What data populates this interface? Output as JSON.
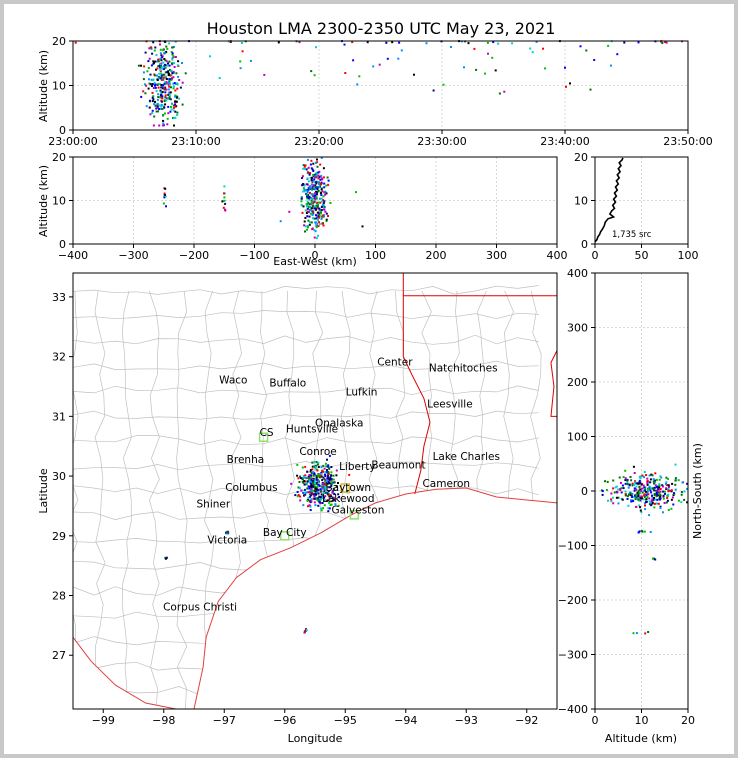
{
  "title": "Houston LMA 2300-2350 UTC May 23, 2021",
  "chart_data": [
    {
      "panel": "time-altitude",
      "type": "scatter",
      "ylabel": "Altitude (km)",
      "xlabel": "",
      "x_ticks": [
        "23:00:00",
        "23:10:00",
        "23:20:00",
        "23:30:00",
        "23:40:00",
        "23:50:00"
      ],
      "xlim_minutes": [
        0,
        50
      ],
      "y_ticks": [
        0,
        10,
        20
      ],
      "ylim": [
        0,
        20
      ],
      "grid": true
    },
    {
      "panel": "east-west-altitude",
      "type": "scatter",
      "xlabel": "East-West (km)",
      "ylabel": "Altitude (km)",
      "x_ticks": [
        -400,
        -300,
        -200,
        -100,
        0,
        100,
        200,
        300,
        400
      ],
      "xlim": [
        -400,
        400
      ],
      "y_ticks": [
        0,
        10,
        20
      ],
      "ylim": [
        0,
        20
      ],
      "grid": true
    },
    {
      "panel": "altitude-histogram",
      "type": "line",
      "x_ticks": [
        0,
        50,
        100
      ],
      "xlim": [
        0,
        100
      ],
      "y_ticks": [
        0,
        10,
        20
      ],
      "ylim": [
        0,
        20
      ],
      "annotation": "1,735 src",
      "profile": [
        [
          0,
          0.5
        ],
        [
          2,
          1
        ],
        [
          3,
          1.6
        ],
        [
          5,
          2.2
        ],
        [
          6,
          2.8
        ],
        [
          8,
          3.4
        ],
        [
          10,
          4.2
        ],
        [
          11,
          5
        ],
        [
          14,
          5.8
        ],
        [
          20,
          6.2
        ],
        [
          16,
          6.9
        ],
        [
          18,
          7.6
        ],
        [
          21,
          8.2
        ],
        [
          19,
          8.9
        ],
        [
          22,
          9.6
        ],
        [
          20,
          10.3
        ],
        [
          23,
          11
        ],
        [
          21,
          11.7
        ],
        [
          24,
          12.4
        ],
        [
          22,
          13.1
        ],
        [
          25,
          13.8
        ],
        [
          23,
          14.5
        ],
        [
          26,
          15.2
        ],
        [
          24,
          15.9
        ],
        [
          27,
          16.6
        ],
        [
          25,
          17.3
        ],
        [
          28,
          18
        ],
        [
          26,
          18.7
        ],
        [
          29,
          19.3
        ],
        [
          30,
          19.8
        ]
      ]
    },
    {
      "panel": "plan-view-map",
      "type": "scatter",
      "xlabel": "Longitude",
      "ylabel": "Latitude",
      "x_ticks": [
        -99,
        -98,
        -97,
        -96,
        -95,
        -94,
        -93,
        -92
      ],
      "xlim": [
        -99.5,
        -91.5
      ],
      "y_ticks": [
        27,
        28,
        29,
        30,
        31,
        32,
        33
      ],
      "ylim": [
        26.1,
        33.4
      ],
      "cities": [
        {
          "name": "Waco",
          "lon": -96.85,
          "lat": 31.55
        },
        {
          "name": "Buffalo",
          "lon": -95.95,
          "lat": 31.5
        },
        {
          "name": "Lufkin",
          "lon": -94.73,
          "lat": 31.35
        },
        {
          "name": "Center",
          "lon": -94.18,
          "lat": 31.85
        },
        {
          "name": "Natchitoches",
          "lon": -93.05,
          "lat": 31.75
        },
        {
          "name": "Leesville",
          "lon": -93.27,
          "lat": 31.15
        },
        {
          "name": "Onalaska",
          "lon": -95.1,
          "lat": 30.83
        },
        {
          "name": "Huntsville",
          "lon": -95.55,
          "lat": 30.73
        },
        {
          "name": "Conroe",
          "lon": -95.45,
          "lat": 30.35
        },
        {
          "name": "Liberty",
          "lon": -94.8,
          "lat": 30.1
        },
        {
          "name": "Beaumont",
          "lon": -94.12,
          "lat": 30.13
        },
        {
          "name": "Lake Charles",
          "lon": -93.0,
          "lat": 30.27
        },
        {
          "name": "Cameron",
          "lon": -93.33,
          "lat": 29.82
        },
        {
          "name": "Columbus",
          "lon": -96.55,
          "lat": 29.75
        },
        {
          "name": "Galveston",
          "lon": -94.79,
          "lat": 29.37
        },
        {
          "name": "Shiner",
          "lon": -97.18,
          "lat": 29.47
        },
        {
          "name": "Victoria",
          "lon": -96.95,
          "lat": 28.87
        },
        {
          "name": "Corpus Christi",
          "lon": -97.4,
          "lat": 27.75
        }
      ],
      "partial_labels": [
        {
          "text": "CS",
          "lon": -96.3,
          "lat": 30.67
        },
        {
          "text": "Brenha",
          "lon": -96.65,
          "lat": 30.22
        },
        {
          "text": "Bay City",
          "lon": -96.0,
          "lat": 29.0
        },
        {
          "text": "Baytown",
          "lon": -94.95,
          "lat": 29.75
        },
        {
          "text": "Lakewood",
          "lon": -94.95,
          "lat": 29.57
        }
      ]
    },
    {
      "panel": "north-south-altitude",
      "type": "scatter",
      "xlabel": "Altitude (km)",
      "ylabel": "North-South (km)",
      "x_ticks": [
        0,
        10,
        20
      ],
      "xlim": [
        0,
        20
      ],
      "y_ticks": [
        -400,
        -300,
        -200,
        -100,
        0,
        100,
        200,
        300,
        400
      ],
      "ylim": [
        -400,
        400
      ],
      "grid": true
    }
  ],
  "colors": {
    "source_palette": [
      "#0000ff",
      "#000080",
      "#0090ff",
      "#00c000",
      "#007000",
      "#ff0000",
      "#c000c0",
      "#000000",
      "#00d0d0"
    ],
    "state_border": "#e00000",
    "county_border": "#c0c0c0",
    "coastline": "#e04040",
    "grid": "#d8d8d8",
    "station_marker": "#90e070",
    "station_marker_alt": "#e0b030"
  }
}
